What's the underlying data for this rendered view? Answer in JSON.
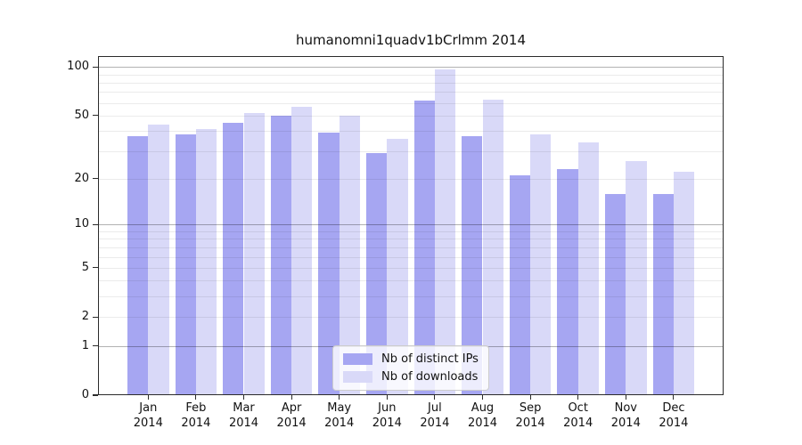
{
  "title": "humanomni1quadv1bCrlmm 2014",
  "colors": {
    "distinct_ips": "#a6a6f2",
    "downloads": "#d9d9f8",
    "grid_major": "#b0b0b0",
    "grid_minor": "#ebebeb",
    "axis": "#2b2b2b"
  },
  "legend": {
    "items": [
      {
        "label": "Nb of distinct IPs",
        "color_key": "distinct_ips"
      },
      {
        "label": "Nb of downloads",
        "color_key": "downloads"
      }
    ]
  },
  "y_axis": {
    "tick_values": [
      0,
      1,
      2,
      5,
      10,
      20,
      50,
      100
    ],
    "major_grid_values": [
      1,
      10,
      100
    ],
    "minor_grid_values": [
      2,
      3,
      4,
      5,
      6,
      7,
      8,
      9,
      20,
      30,
      40,
      50,
      60,
      70,
      80,
      90
    ],
    "scale": "log10(value+1)"
  },
  "x_axis": {
    "months": [
      "Jan",
      "Feb",
      "Mar",
      "Apr",
      "May",
      "Jun",
      "Jul",
      "Aug",
      "Sep",
      "Oct",
      "Nov",
      "Dec"
    ],
    "year": "2014"
  },
  "chart_data": {
    "type": "bar",
    "title": "humanomni1quadv1bCrlmm 2014",
    "categories": [
      "Jan 2014",
      "Feb 2014",
      "Mar 2014",
      "Apr 2014",
      "May 2014",
      "Jun 2014",
      "Jul 2014",
      "Aug 2014",
      "Sep 2014",
      "Oct 2014",
      "Nov 2014",
      "Dec 2014"
    ],
    "series": [
      {
        "name": "Nb of distinct IPs",
        "values": [
          37,
          38,
          45,
          50,
          39,
          29,
          62,
          37,
          21,
          23,
          16,
          16
        ]
      },
      {
        "name": "Nb of downloads",
        "values": [
          44,
          41,
          52,
          57,
          50,
          36,
          97,
          63,
          38,
          34,
          26,
          22
        ]
      }
    ],
    "yscale": "log10(value+1)",
    "yticks": [
      0,
      1,
      2,
      5,
      10,
      20,
      50,
      100
    ],
    "ylim": [
      0,
      110
    ],
    "grid": true,
    "legend_position": "lower center"
  }
}
